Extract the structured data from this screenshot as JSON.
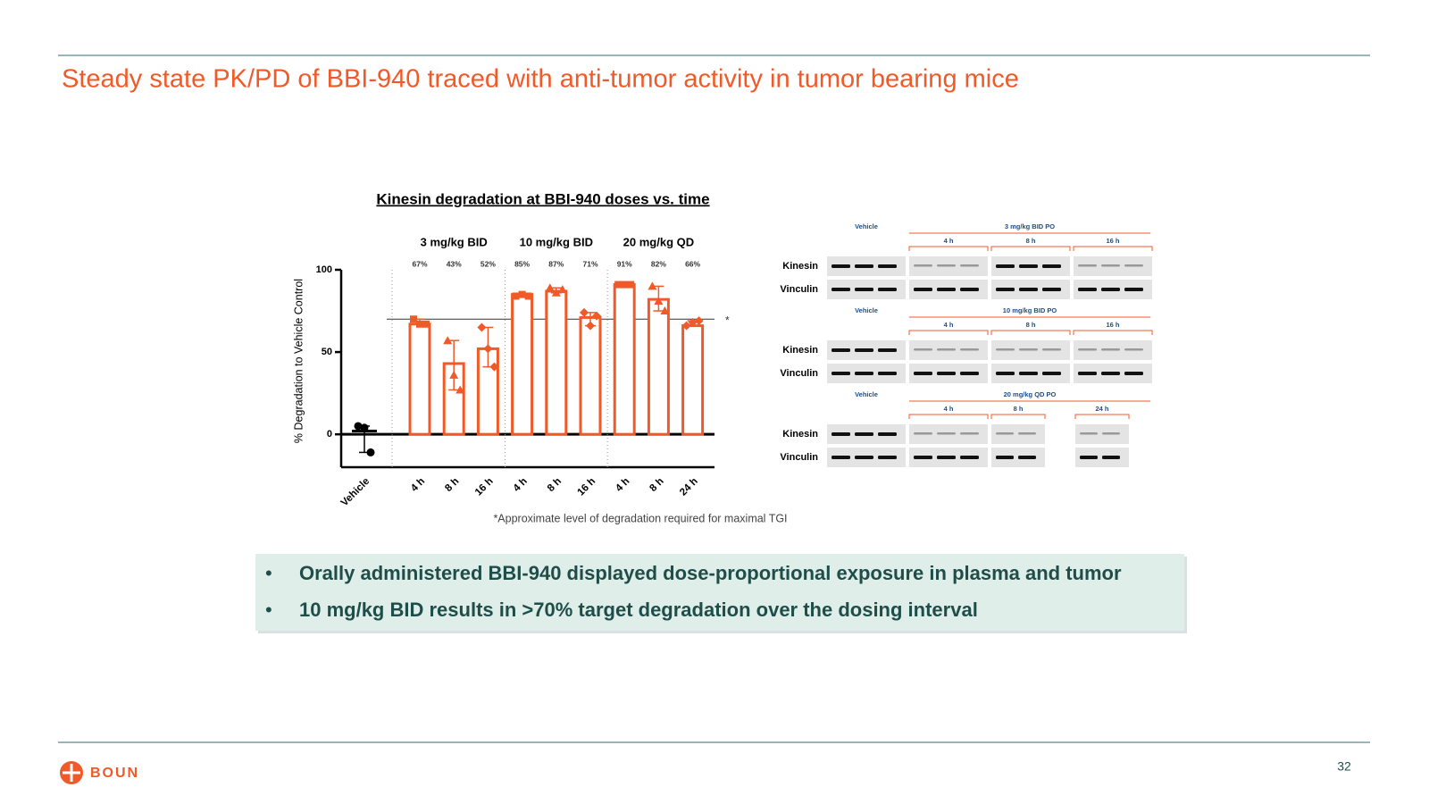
{
  "slide": {
    "title": "Steady state PK/PD of BBI-940 traced with anti-tumor activity in tumor bearing mice",
    "logo": "BOUN",
    "page_number": "32",
    "bullets": [
      "Orally administered BBI-940 displayed dose-proportional exposure in plasma and tumor",
      "10 mg/kg BID results in >70% target degradation over the dosing interval"
    ]
  },
  "chart_data": {
    "type": "bar",
    "title": "Kinesin degradation at BBI-940 doses vs. time",
    "y_label": "% Degradation to Vehicle Control",
    "categories": [
      "Vehicle",
      "4 h",
      "8 h",
      "16 h",
      "4 h",
      "8 h",
      "16 h",
      "4 h",
      "8 h",
      "24 h"
    ],
    "groups": [
      "3 mg/kg BID",
      "10 mg/kg BID",
      "20 mg/kg QD"
    ],
    "values": [
      2,
      67,
      43,
      52,
      85,
      87,
      71,
      91,
      82,
      66
    ],
    "value_labels": [
      null,
      "67%",
      "43%",
      "52%",
      "85%",
      "87%",
      "71%",
      "91%",
      "82%",
      "66%"
    ],
    "points": [
      [
        5,
        4,
        -11
      ],
      [
        70,
        67,
        67
      ],
      [
        57,
        36,
        27
      ],
      [
        65,
        52,
        41
      ],
      [
        84,
        85,
        84
      ],
      [
        89,
        86,
        88
      ],
      [
        74,
        66,
        72
      ],
      [
        91,
        91,
        91
      ],
      [
        90,
        81,
        75
      ],
      [
        66,
        68,
        69
      ]
    ],
    "colors": [
      "#000000",
      "#f05a28"
    ],
    "reference_line": 70,
    "reference_label": "*",
    "footnote": "*Approximate level of degradation required for maximal TGI",
    "ylim": [
      -20,
      100
    ],
    "yticks": [
      0,
      50,
      100
    ]
  },
  "blots": {
    "vehicle_label": "Vehicle",
    "row_labels": [
      "Kinesin",
      "Vinculin"
    ],
    "panels": [
      {
        "title": "3 mg/kg BID PO",
        "times": [
          "4 h",
          "8 h",
          "16 h"
        ]
      },
      {
        "title": "10 mg/kg BID PO",
        "times": [
          "4 h",
          "8 h",
          "16 h"
        ]
      },
      {
        "title": "20 mg/kg QD PO",
        "times": [
          "4 h",
          "8 h",
          "24 h"
        ]
      }
    ]
  }
}
